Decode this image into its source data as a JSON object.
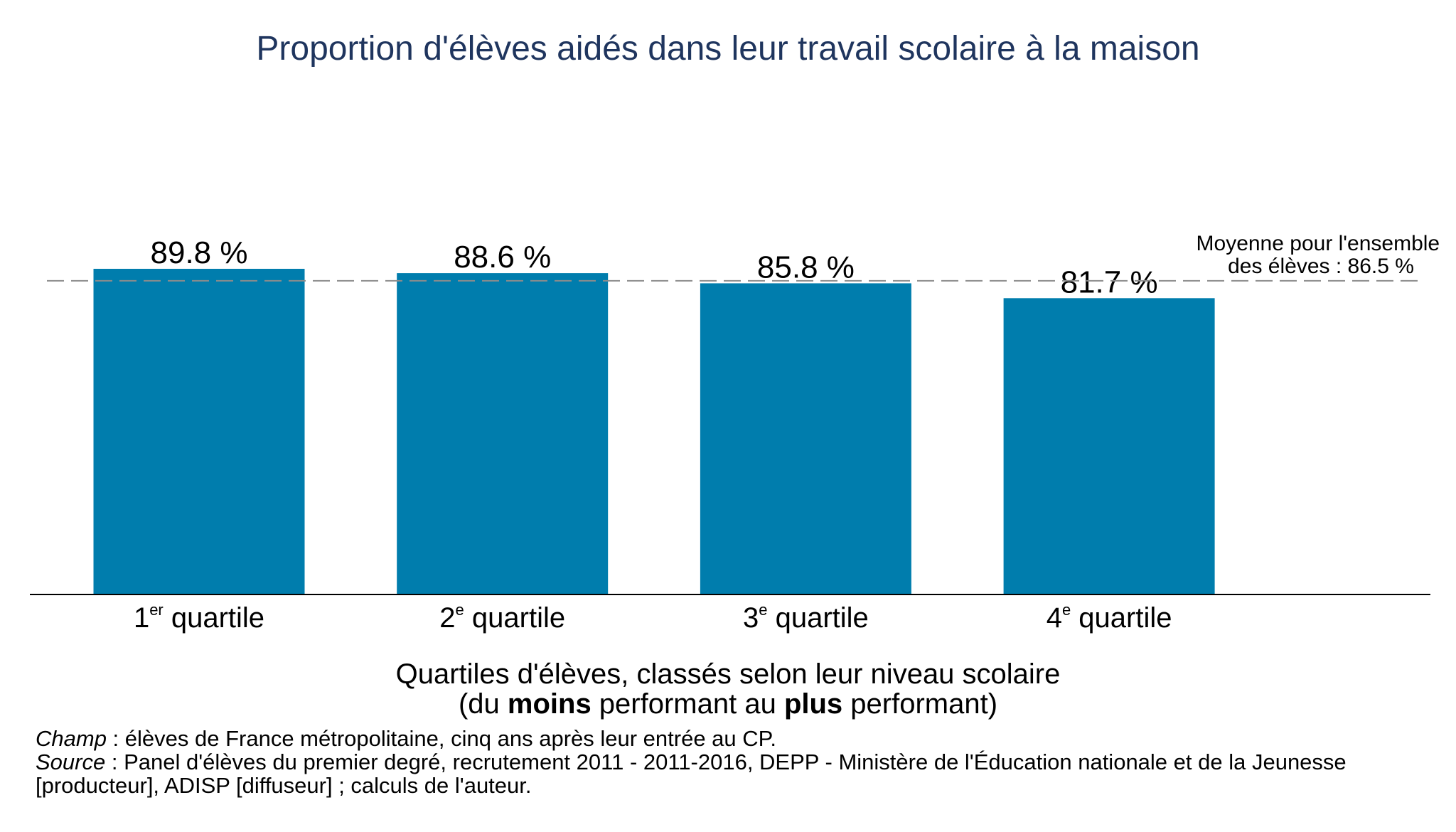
{
  "chart_data": {
    "type": "bar",
    "title": "Proportion d'élèves aidés dans leur travail scolaire à la maison",
    "categories": [
      {
        "number": "1",
        "sup": "er",
        "word": "quartile"
      },
      {
        "number": "2",
        "sup": "e",
        "word": "quartile"
      },
      {
        "number": "3",
        "sup": "e",
        "word": "quartile"
      },
      {
        "number": "4",
        "sup": "e",
        "word": "quartile"
      }
    ],
    "values": [
      89.8,
      88.6,
      85.8,
      81.7
    ],
    "value_labels": [
      "89.8 %",
      "88.6 %",
      "85.8 %",
      "81.7 %"
    ],
    "ylim": [
      0,
      100
    ],
    "grid": false,
    "xlabel": {
      "line1": "Quartiles d'élèves, classés selon leur niveau scolaire",
      "line2_part1": "(du ",
      "line2_bold1": "moins",
      "line2_part2": " performant au ",
      "line2_bold2": "plus",
      "line2_part3": " performant)"
    },
    "reference_line": {
      "value": 86.5,
      "style": "dashed",
      "label_line1": "Moyenne pour l'ensemble",
      "label_line2": "des élèves : 86.5 %"
    },
    "colors": {
      "bar": "#007DAD",
      "title": "#1F355E",
      "reference_line": "#8C8C8C",
      "axis": "#000000"
    }
  },
  "footnotes": {
    "champ_label": "Champ",
    "champ_text": " : élèves de France métropolitaine, cinq ans après leur entrée au CP.",
    "source_label": "Source",
    "source_text": " : Panel d'élèves du premier degré, recrutement 2011 - 2011-2016, DEPP - Ministère de l'Éducation nationale et de la Jeunesse",
    "source_text_line2": "[producteur], ADISP [diffuseur] ; calculs de l'auteur."
  }
}
